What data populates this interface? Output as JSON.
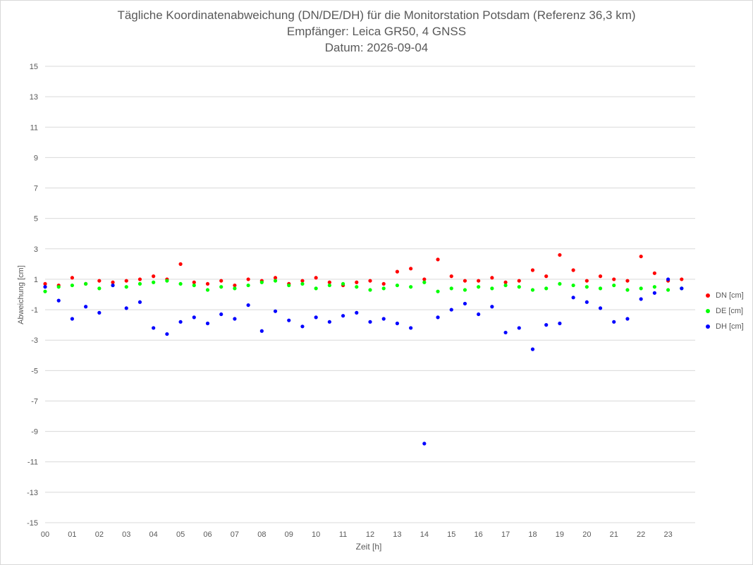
{
  "chart_data": {
    "type": "scatter",
    "title": [
      "Tägliche Koordinatenabweichung (DN/DE/DH) für die Monitorstation Potsdam (Referenz 36,3 km)",
      "Empfänger: Leica GR50, 4 GNSS",
      "Datum: 2026-09-04"
    ],
    "xlabel": "Zeit [h]",
    "ylabel": "Abweichung [cm]",
    "xlim": [
      0,
      24
    ],
    "ylim": [
      -15,
      15
    ],
    "x_ticks": [
      "00",
      "01",
      "02",
      "03",
      "04",
      "05",
      "06",
      "07",
      "08",
      "09",
      "10",
      "11",
      "12",
      "13",
      "14",
      "15",
      "16",
      "17",
      "18",
      "19",
      "20",
      "21",
      "22",
      "23"
    ],
    "y_ticks": [
      15,
      13,
      11,
      9,
      7,
      5,
      3,
      1,
      -1,
      -3,
      -5,
      -7,
      -9,
      -11,
      -13,
      -15
    ],
    "grid": true,
    "legend_position": "right",
    "series": [
      {
        "name": "DN [cm]",
        "color": "#ff0000",
        "x": [
          0.0,
          0.5,
          1.0,
          1.5,
          2.0,
          2.5,
          3.0,
          3.5,
          4.0,
          4.5,
          5.0,
          5.5,
          6.0,
          6.5,
          7.0,
          7.5,
          8.0,
          8.5,
          9.0,
          9.5,
          10.0,
          10.5,
          11.0,
          11.5,
          12.0,
          12.5,
          13.0,
          13.5,
          14.0,
          14.5,
          15.0,
          15.5,
          16.0,
          16.5,
          17.0,
          17.5,
          18.0,
          18.5,
          19.0,
          19.5,
          20.0,
          20.5,
          21.0,
          21.5,
          22.0,
          22.5,
          23.0,
          23.5
        ],
        "y": [
          0.7,
          0.6,
          1.1,
          0.7,
          0.9,
          0.8,
          0.9,
          1.0,
          1.2,
          1.0,
          2.0,
          0.8,
          0.7,
          0.9,
          0.6,
          1.0,
          0.9,
          1.1,
          0.7,
          0.9,
          1.1,
          0.8,
          0.6,
          0.8,
          0.9,
          0.7,
          1.5,
          1.7,
          1.0,
          2.3,
          1.2,
          0.9,
          0.9,
          1.1,
          0.8,
          0.9,
          1.6,
          1.2,
          2.6,
          1.6,
          0.9,
          1.2,
          1.0,
          0.9,
          2.5,
          1.4,
          0.9,
          1.0
        ]
      },
      {
        "name": "DE [cm]",
        "color": "#00ff00",
        "x": [
          0.0,
          0.5,
          1.0,
          1.5,
          2.0,
          2.5,
          3.0,
          3.5,
          4.0,
          4.5,
          5.0,
          5.5,
          6.0,
          6.5,
          7.0,
          7.5,
          8.0,
          8.5,
          9.0,
          9.5,
          10.0,
          10.5,
          11.0,
          11.5,
          12.0,
          12.5,
          13.0,
          13.5,
          14.0,
          14.5,
          15.0,
          15.5,
          16.0,
          16.5,
          17.0,
          17.5,
          18.0,
          18.5,
          19.0,
          19.5,
          20.0,
          20.5,
          21.0,
          21.5,
          22.0,
          22.5,
          23.0,
          23.5
        ],
        "y": [
          0.2,
          0.5,
          0.6,
          0.7,
          0.4,
          0.6,
          0.5,
          0.7,
          0.8,
          0.9,
          0.7,
          0.6,
          0.3,
          0.5,
          0.4,
          0.6,
          0.8,
          0.9,
          0.6,
          0.7,
          0.4,
          0.6,
          0.7,
          0.5,
          0.3,
          0.4,
          0.6,
          0.5,
          0.8,
          0.2,
          0.4,
          0.3,
          0.5,
          0.4,
          0.6,
          0.5,
          0.3,
          0.4,
          0.7,
          0.6,
          0.5,
          0.4,
          0.6,
          0.3,
          0.4,
          0.5,
          0.3,
          0.4
        ]
      },
      {
        "name": "DH [cm]",
        "color": "#0000ff",
        "x": [
          0.0,
          0.5,
          1.0,
          1.5,
          2.0,
          2.5,
          3.0,
          3.5,
          4.0,
          4.5,
          5.0,
          5.5,
          6.0,
          6.5,
          7.0,
          7.5,
          8.0,
          8.5,
          9.0,
          9.5,
          10.0,
          10.5,
          11.0,
          11.5,
          12.0,
          12.5,
          13.0,
          13.5,
          14.0,
          14.5,
          15.0,
          15.5,
          16.0,
          16.5,
          17.0,
          17.5,
          18.0,
          18.5,
          19.0,
          19.5,
          20.0,
          20.5,
          21.0,
          21.5,
          22.0,
          22.5,
          23.0,
          23.5
        ],
        "y": [
          0.5,
          -0.4,
          -1.6,
          -0.8,
          -1.2,
          0.6,
          -0.9,
          -0.5,
          -2.2,
          -2.6,
          -1.8,
          -1.5,
          -1.9,
          -1.3,
          -1.6,
          -0.7,
          -2.4,
          -1.1,
          -1.7,
          -2.1,
          -1.5,
          -1.8,
          -1.4,
          -1.2,
          -1.8,
          -1.6,
          -1.9,
          -2.2,
          -9.8,
          -1.5,
          -1.0,
          -0.6,
          -1.3,
          -0.8,
          -2.5,
          -2.2,
          -3.6,
          -2.0,
          -1.9,
          -0.2,
          -0.5,
          -0.9,
          -1.8,
          -1.6,
          -0.3,
          0.1,
          1.0,
          0.4
        ]
      }
    ]
  }
}
